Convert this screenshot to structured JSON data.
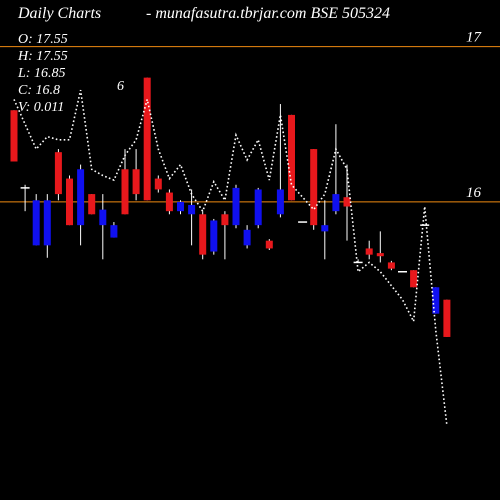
{
  "header": {
    "title": "Daily Charts",
    "source": "- munafasutra.tbrjar.com BSE 505324"
  },
  "readout": [
    "O: 17.55",
    "H: 17.55",
    "L: 16.85",
    "C: 16.8",
    "V: 0.011"
  ],
  "chart_data": {
    "type": "candlestick",
    "title": "",
    "xlabel": "",
    "ylabel": "",
    "y_ticks": [
      17,
      16
    ],
    "ylim": [
      14.08,
      17.3
    ],
    "grid": true,
    "annotations": [
      "6"
    ],
    "candles": [
      {
        "o": 16.59,
        "h": 16.59,
        "l": 16.26,
        "c": 16.26
      },
      {
        "o": 16.09,
        "h": 16.11,
        "l": 15.94,
        "c": 16.09
      },
      {
        "o": 15.72,
        "h": 16.05,
        "l": 15.72,
        "c": 16.01
      },
      {
        "o": 15.72,
        "h": 16.05,
        "l": 15.64,
        "c": 16.01
      },
      {
        "o": 16.32,
        "h": 16.34,
        "l": 16.01,
        "c": 16.05
      },
      {
        "o": 16.15,
        "h": 16.17,
        "l": 15.85,
        "c": 15.85
      },
      {
        "o": 15.85,
        "h": 16.24,
        "l": 15.72,
        "c": 16.21
      },
      {
        "o": 16.05,
        "h": 16.05,
        "l": 15.92,
        "c": 15.92
      },
      {
        "o": 15.85,
        "h": 16.05,
        "l": 15.63,
        "c": 15.95
      },
      {
        "o": 15.77,
        "h": 15.87,
        "l": 15.77,
        "c": 15.85
      },
      {
        "o": 16.21,
        "h": 16.34,
        "l": 15.92,
        "c": 15.92
      },
      {
        "o": 16.21,
        "h": 16.34,
        "l": 16.01,
        "c": 16.05
      },
      {
        "o": 16.8,
        "h": 16.8,
        "l": 16.01,
        "c": 16.01
      },
      {
        "o": 16.15,
        "h": 16.17,
        "l": 16.06,
        "c": 16.08
      },
      {
        "o": 16.06,
        "h": 16.08,
        "l": 15.92,
        "c": 15.94
      },
      {
        "o": 15.94,
        "h": 16.01,
        "l": 15.92,
        "c": 16.0
      },
      {
        "o": 15.92,
        "h": 16.08,
        "l": 15.72,
        "c": 15.98
      },
      {
        "o": 15.92,
        "h": 15.94,
        "l": 15.63,
        "c": 15.66
      },
      {
        "o": 15.68,
        "h": 15.89,
        "l": 15.66,
        "c": 15.88
      },
      {
        "o": 15.92,
        "h": 15.94,
        "l": 15.63,
        "c": 15.85
      },
      {
        "o": 15.85,
        "h": 16.11,
        "l": 15.83,
        "c": 16.09
      },
      {
        "o": 15.72,
        "h": 15.85,
        "l": 15.7,
        "c": 15.82
      },
      {
        "o": 15.85,
        "h": 16.09,
        "l": 15.83,
        "c": 16.08
      },
      {
        "o": 15.75,
        "h": 15.76,
        "l": 15.69,
        "c": 15.7
      },
      {
        "o": 15.92,
        "h": 16.63,
        "l": 15.9,
        "c": 16.08
      },
      {
        "o": 16.56,
        "h": 16.56,
        "l": 16.01,
        "c": 16.01
      },
      {
        "o": 15.87,
        "h": 15.87,
        "l": 15.87,
        "c": 15.87
      },
      {
        "o": 16.34,
        "h": 16.34,
        "l": 15.82,
        "c": 15.85
      },
      {
        "o": 15.81,
        "h": 16.01,
        "l": 15.63,
        "c": 15.85
      },
      {
        "o": 15.94,
        "h": 16.5,
        "l": 15.92,
        "c": 16.05
      },
      {
        "o": 16.03,
        "h": 16.24,
        "l": 15.75,
        "c": 15.97
      },
      {
        "o": 15.61,
        "h": 15.63,
        "l": 15.61,
        "c": 15.61
      },
      {
        "o": 15.7,
        "h": 15.75,
        "l": 15.63,
        "c": 15.66
      },
      {
        "o": 15.67,
        "h": 15.81,
        "l": 15.61,
        "c": 15.65
      },
      {
        "o": 15.61,
        "h": 15.62,
        "l": 15.56,
        "c": 15.57
      },
      {
        "o": 15.55,
        "h": 15.55,
        "l": 15.55,
        "c": 15.55
      },
      {
        "o": 15.56,
        "h": 15.56,
        "l": 15.45,
        "c": 15.45
      },
      {
        "o": 15.85,
        "h": 15.85,
        "l": 15.85,
        "c": 15.85
      },
      {
        "o": 15.28,
        "h": 15.45,
        "l": 15.28,
        "c": 15.45
      },
      {
        "o": 15.37,
        "h": 15.37,
        "l": 15.13,
        "c": 15.13
      }
    ],
    "series": [
      {
        "values": [
          16.66,
          16.5,
          16.34,
          16.42,
          16.4,
          16.4,
          16.72,
          16.21,
          16.17,
          16.14,
          16.3,
          16.4,
          16.66,
          16.34,
          16.15,
          16.24,
          16.05,
          15.94,
          16.13,
          16.01,
          16.43,
          16.27,
          16.4,
          16.14,
          16.56,
          16.11,
          16.03,
          15.95,
          16.05,
          16.34,
          16.21,
          15.55,
          15.61,
          15.55,
          15.46,
          15.37,
          15.23,
          15.97,
          15.17,
          14.56
        ]
      }
    ],
    "colors": {
      "background": "#000000",
      "text": "#ffffff",
      "up": "#1010f0",
      "down": "#e8181c",
      "flat": "#ffffff",
      "wick": "#ffffff",
      "line": "#ffffff",
      "level_lines": "#f08a10"
    }
  }
}
